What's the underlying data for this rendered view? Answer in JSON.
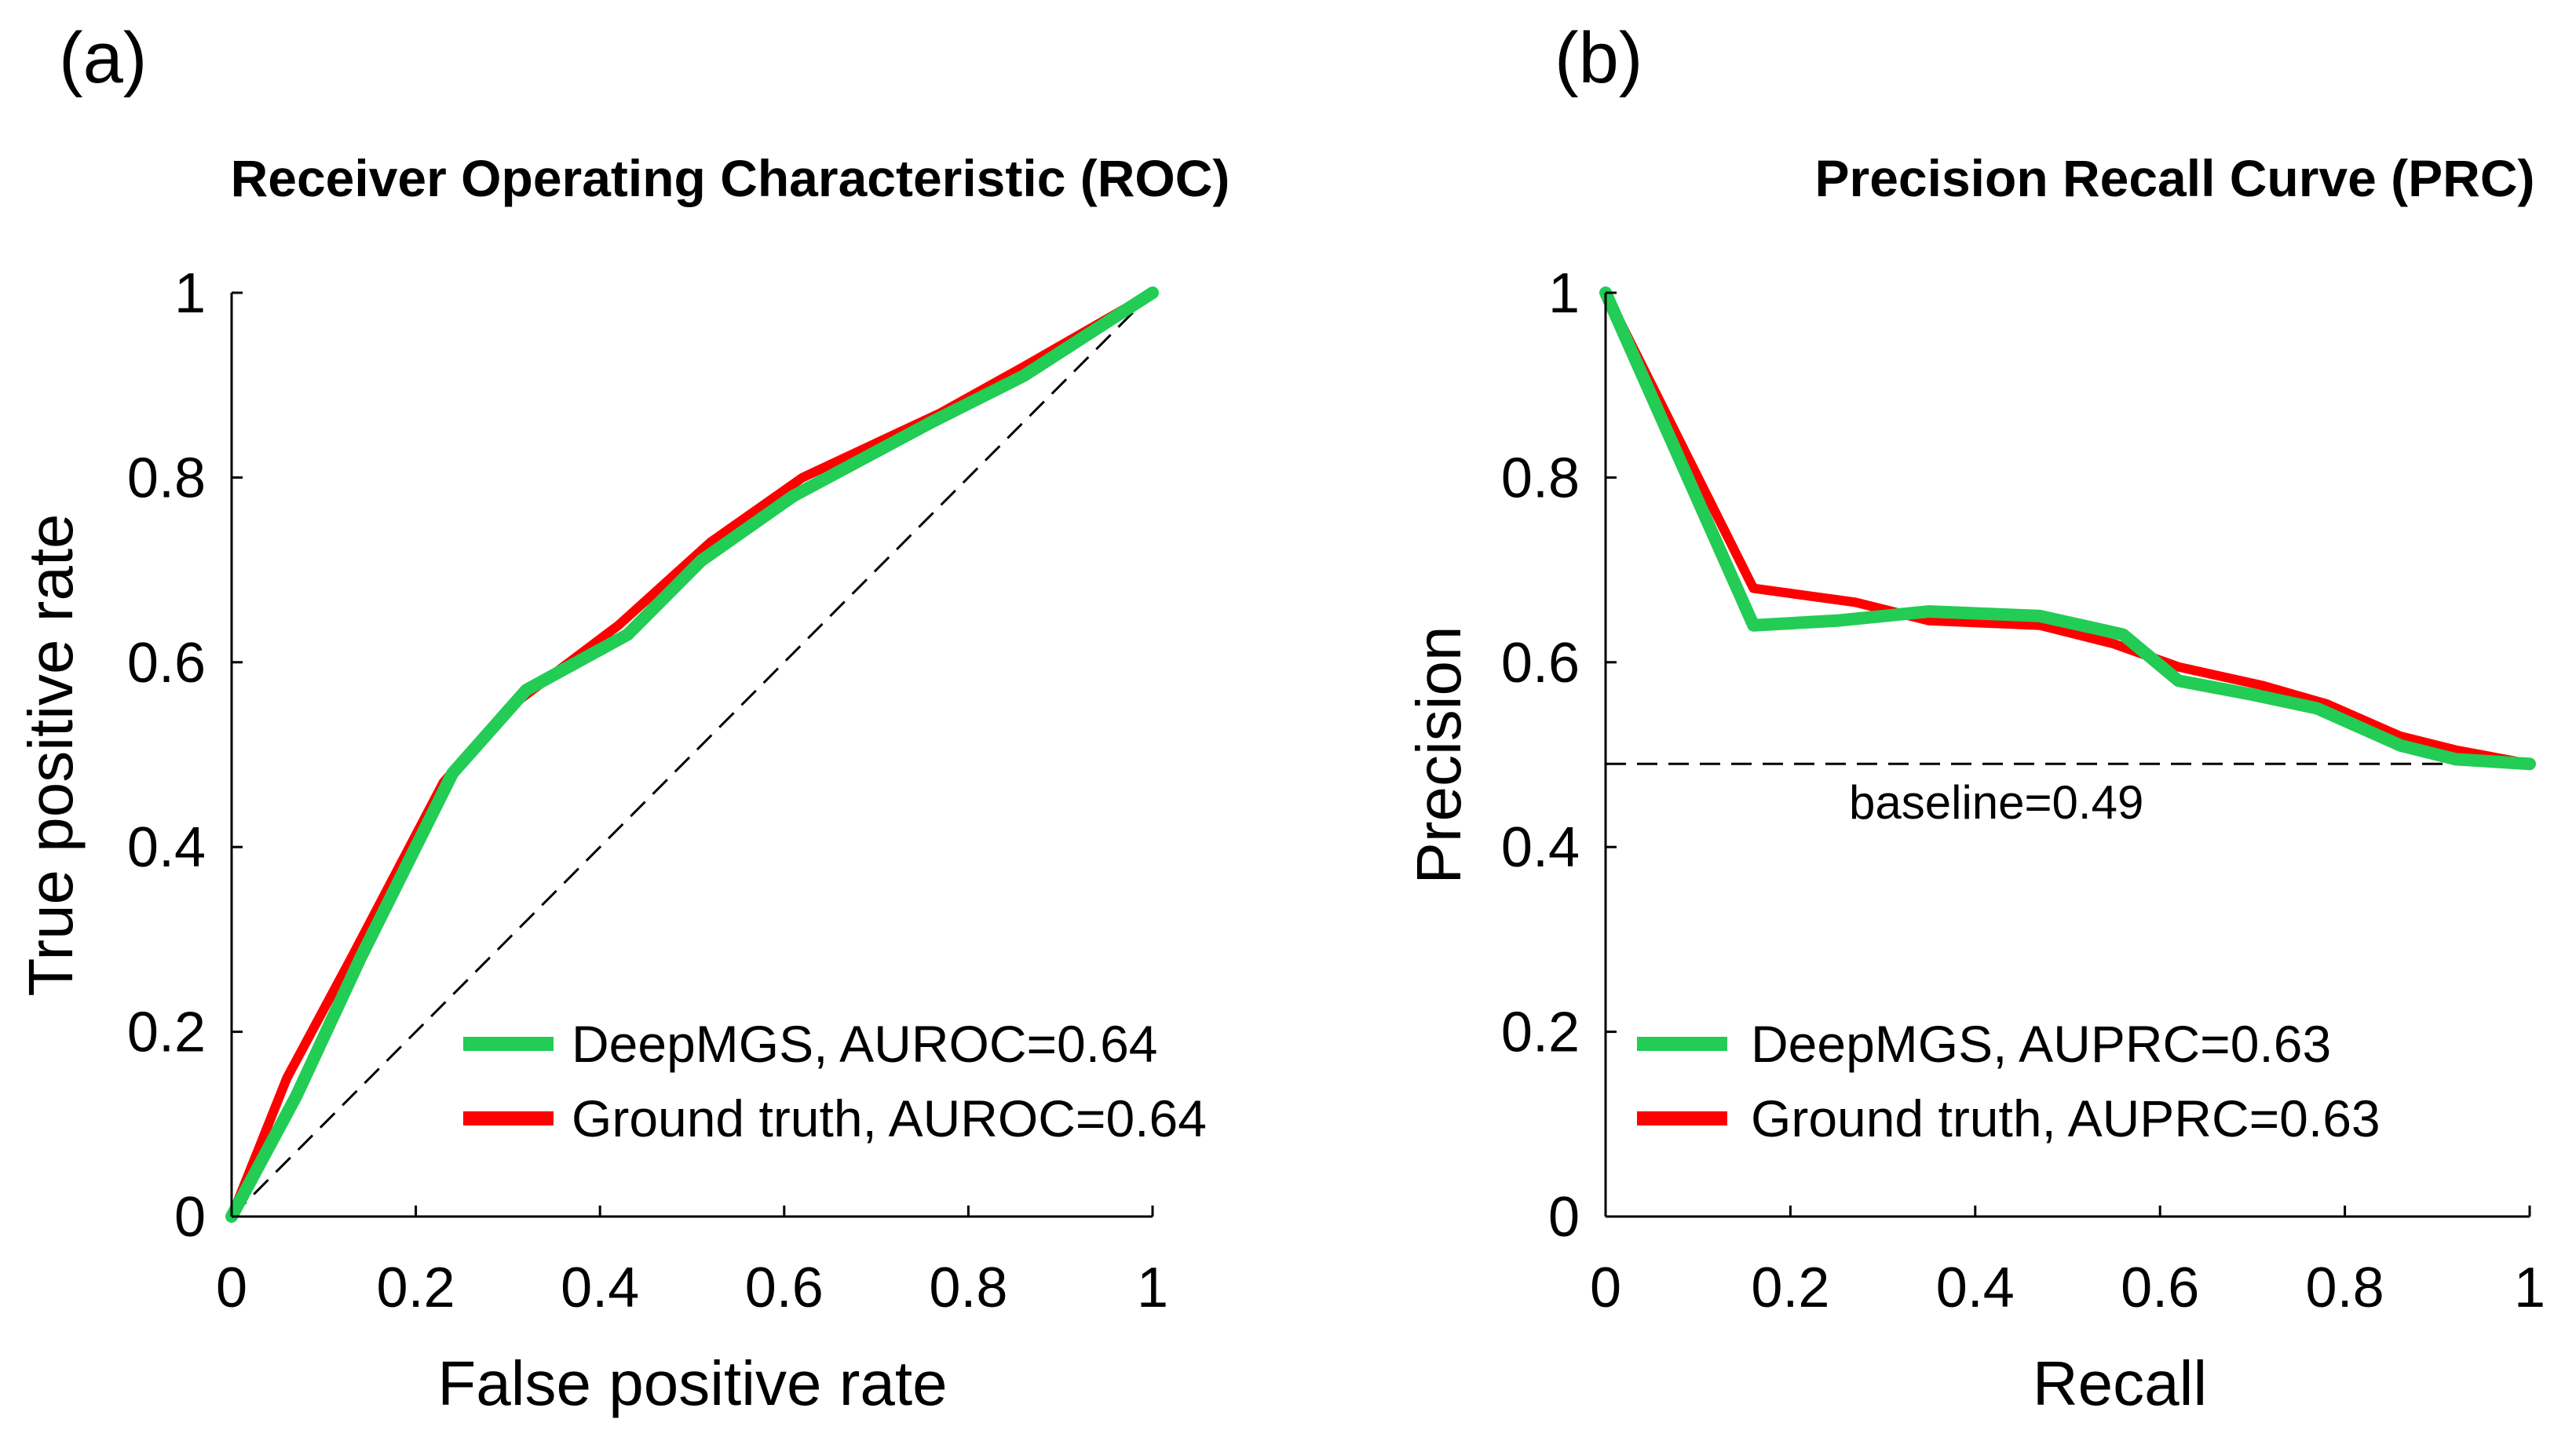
{
  "chart_data": [
    {
      "panel_label": "(a)",
      "type": "line",
      "title": "Receiver Operating Characteristic (ROC)",
      "xlabel": "False positive rate",
      "ylabel": "True positive rate",
      "xlim": [
        0,
        1
      ],
      "ylim": [
        0,
        1
      ],
      "xticks": [
        "0",
        "0.2",
        "0.4",
        "0.6",
        "0.8",
        "1"
      ],
      "yticks": [
        "0",
        "0.2",
        "0.4",
        "0.6",
        "0.8",
        "1"
      ],
      "series": [
        {
          "name": "Ground truth, AUROC=0.64",
          "color": "#ff0000",
          "x": [
            0,
            0.06,
            0.13,
            0.23,
            0.3,
            0.42,
            0.52,
            0.62,
            0.77,
            0.86,
            1.0
          ],
          "y": [
            0,
            0.15,
            0.28,
            0.47,
            0.55,
            0.64,
            0.73,
            0.8,
            0.87,
            0.92,
            1.0
          ]
        },
        {
          "name": "DeepMGS, AUROC=0.64",
          "color": "#22cc55",
          "x": [
            0,
            0.07,
            0.14,
            0.24,
            0.32,
            0.43,
            0.51,
            0.61,
            0.76,
            0.86,
            1.0
          ],
          "y": [
            0,
            0.13,
            0.28,
            0.48,
            0.57,
            0.63,
            0.71,
            0.78,
            0.86,
            0.91,
            1.0
          ]
        }
      ],
      "reference_line": {
        "name": "chance",
        "x": [
          0,
          1
        ],
        "y": [
          0,
          1
        ],
        "color": "#000000"
      },
      "legend": {
        "placement": "bottom-right",
        "entries": [
          {
            "label": "DeepMGS, AUROC=0.64",
            "color": "#22cc55"
          },
          {
            "label": "Ground truth, AUROC=0.64",
            "color": "#ff0000"
          }
        ]
      }
    },
    {
      "panel_label": "(b)",
      "type": "line",
      "title": "Precision Recall Curve (PRC)",
      "xlabel": "Recall",
      "ylabel": "Precision",
      "xlim": [
        0,
        1
      ],
      "ylim": [
        0,
        1
      ],
      "xticks": [
        "0",
        "0.2",
        "0.4",
        "0.6",
        "0.8",
        "1"
      ],
      "yticks": [
        "0",
        "0.2",
        "0.4",
        "0.6",
        "0.8",
        "1"
      ],
      "series": [
        {
          "name": "Ground truth, AUPRC=0.63",
          "color": "#ff0000",
          "x": [
            0,
            0.16,
            0.27,
            0.35,
            0.47,
            0.55,
            0.62,
            0.71,
            0.78,
            0.86,
            0.92,
            1.0
          ],
          "y": [
            1.0,
            0.68,
            0.665,
            0.645,
            0.64,
            0.62,
            0.595,
            0.575,
            0.555,
            0.52,
            0.505,
            0.49
          ]
        },
        {
          "name": "DeepMGS, AUPRC=0.63",
          "color": "#22cc55",
          "x": [
            0,
            0.16,
            0.25,
            0.35,
            0.47,
            0.56,
            0.62,
            0.7,
            0.77,
            0.86,
            0.92,
            1.0
          ],
          "y": [
            1.0,
            0.64,
            0.645,
            0.655,
            0.65,
            0.63,
            0.58,
            0.565,
            0.55,
            0.51,
            0.495,
            0.49
          ]
        }
      ],
      "baseline": {
        "value": 0.49,
        "label": "baseline=0.49",
        "color": "#000000"
      },
      "legend": {
        "placement": "bottom-left",
        "entries": [
          {
            "label": "DeepMGS, AUPRC=0.63",
            "color": "#22cc55"
          },
          {
            "label": "Ground truth, AUPRC=0.63",
            "color": "#ff0000"
          }
        ]
      }
    }
  ]
}
